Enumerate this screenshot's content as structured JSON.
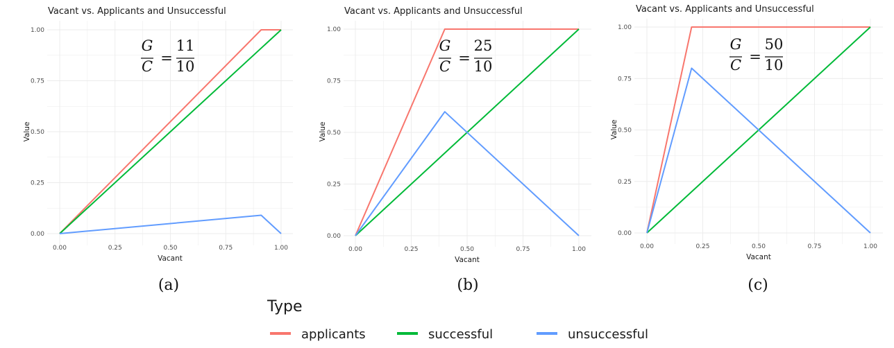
{
  "chart_data": [
    {
      "type": "line",
      "title": "Vacant vs. Applicants and Unsuccessful",
      "xlabel": "Vacant",
      "ylabel": "Value",
      "xlim": [
        0,
        1
      ],
      "ylim": [
        0,
        1
      ],
      "x_ticks": [
        "0.00",
        "0.25",
        "0.50",
        "0.75",
        "1.00"
      ],
      "y_ticks": [
        "0.00",
        "0.25",
        "0.50",
        "0.75",
        "1.00"
      ],
      "grid": true,
      "annotation": {
        "lhs_num": "G",
        "lhs_den": "C",
        "eq": "=",
        "rhs_num": "11",
        "rhs_den": "10"
      },
      "sublabel": "(a)",
      "series": [
        {
          "name": "applicants",
          "x": [
            0,
            0.91,
            1.0
          ],
          "y": [
            0,
            1.0,
            1.0
          ]
        },
        {
          "name": "successful",
          "x": [
            0,
            1.0
          ],
          "y": [
            0,
            1.0
          ]
        },
        {
          "name": "unsuccessful",
          "x": [
            0,
            0.91,
            1.0
          ],
          "y": [
            0,
            0.09,
            0.0
          ]
        }
      ]
    },
    {
      "type": "line",
      "title": "Vacant vs. Applicants and Unsuccessful",
      "xlabel": "Vacant",
      "ylabel": "Value",
      "xlim": [
        0,
        1
      ],
      "ylim": [
        0,
        1
      ],
      "x_ticks": [
        "0.00",
        "0.25",
        "0.50",
        "0.75",
        "1.00"
      ],
      "y_ticks": [
        "0.00",
        "0.25",
        "0.50",
        "0.75",
        "1.00"
      ],
      "grid": true,
      "annotation": {
        "lhs_num": "G",
        "lhs_den": "C",
        "eq": "=",
        "rhs_num": "25",
        "rhs_den": "10"
      },
      "sublabel": "(b)",
      "series": [
        {
          "name": "applicants",
          "x": [
            0,
            0.4,
            1.0
          ],
          "y": [
            0,
            1.0,
            1.0
          ]
        },
        {
          "name": "successful",
          "x": [
            0,
            1.0
          ],
          "y": [
            0,
            1.0
          ]
        },
        {
          "name": "unsuccessful",
          "x": [
            0,
            0.4,
            1.0
          ],
          "y": [
            0,
            0.6,
            0.0
          ]
        }
      ]
    },
    {
      "type": "line",
      "title": "Vacant vs. Applicants and Unsuccessful",
      "xlabel": "Vacant",
      "ylabel": "Value",
      "xlim": [
        0,
        1
      ],
      "ylim": [
        0,
        1
      ],
      "x_ticks": [
        "0.00",
        "0.25",
        "0.50",
        "0.75",
        "1.00"
      ],
      "y_ticks": [
        "0.00",
        "0.25",
        "0.50",
        "0.75",
        "1.00"
      ],
      "grid": true,
      "annotation": {
        "lhs_num": "G",
        "lhs_den": "C",
        "eq": "=",
        "rhs_num": "50",
        "rhs_den": "10"
      },
      "sublabel": "(c)",
      "series": [
        {
          "name": "applicants",
          "x": [
            0,
            0.2,
            1.0
          ],
          "y": [
            0,
            1.0,
            1.0
          ]
        },
        {
          "name": "successful",
          "x": [
            0,
            1.0
          ],
          "y": [
            0,
            1.0
          ]
        },
        {
          "name": "unsuccessful",
          "x": [
            0,
            0.2,
            1.0
          ],
          "y": [
            0,
            0.8,
            0.0
          ]
        }
      ]
    }
  ],
  "legend": {
    "title": "Type",
    "placement": "bottom",
    "items": [
      {
        "label": "applicants",
        "color": "#F8766D"
      },
      {
        "label": "successful",
        "color": "#00BA38"
      },
      {
        "label": "unsuccessful",
        "color": "#619CFF"
      }
    ]
  },
  "colors": {
    "applicants": "#F8766D",
    "successful": "#00BA38",
    "unsuccessful": "#619CFF",
    "grid": "#ebebeb"
  }
}
